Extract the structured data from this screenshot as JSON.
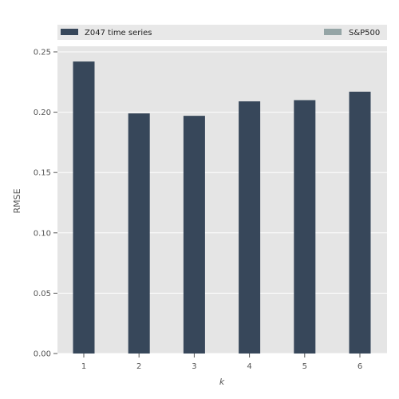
{
  "chart_data": {
    "type": "bar",
    "xlabel": "k",
    "ylabel": "RMSE",
    "categories": [
      "1",
      "2",
      "3",
      "4",
      "5",
      "6"
    ],
    "series": [
      {
        "name": "Z047 time series",
        "color": "#37475a",
        "values": [
          0.242,
          0.199,
          0.197,
          0.209,
          0.21,
          0.217
        ]
      },
      {
        "name": "S&P500",
        "color": "#95a5a6",
        "values": [
          null,
          null,
          null,
          null,
          null,
          null
        ]
      }
    ],
    "ylim": [
      0,
      0.25
    ],
    "yticks": [
      "0.00",
      "0.05",
      "0.10",
      "0.15",
      "0.20",
      "0.25"
    ],
    "grid": true,
    "legend_position": "top",
    "background_color": "#e5e5e5"
  }
}
